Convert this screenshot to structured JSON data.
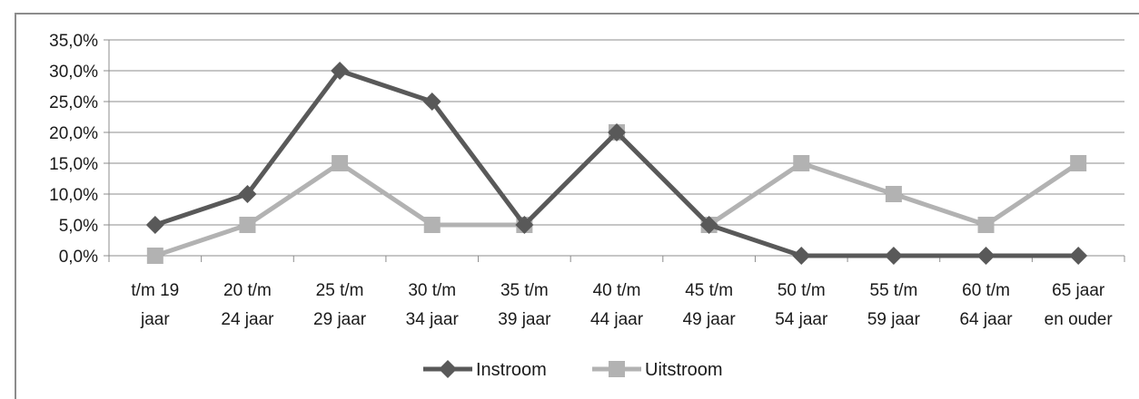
{
  "chart_data": {
    "type": "line",
    "categories": [
      [
        "t/m 19",
        "jaar"
      ],
      [
        "20 t/m",
        "24 jaar"
      ],
      [
        "25 t/m",
        "29 jaar"
      ],
      [
        "30 t/m",
        "34 jaar"
      ],
      [
        "35 t/m",
        "39 jaar"
      ],
      [
        "40 t/m",
        "44 jaar"
      ],
      [
        "45 t/m",
        "49 jaar"
      ],
      [
        "50 t/m",
        "54 jaar"
      ],
      [
        "55 t/m",
        "59 jaar"
      ],
      [
        "60 t/m",
        "64 jaar"
      ],
      [
        "65 jaar",
        "en ouder"
      ]
    ],
    "series": [
      {
        "name": "Instroom",
        "marker": "diamond",
        "color": "#595959",
        "values": [
          5.0,
          10.0,
          30.0,
          25.0,
          5.0,
          20.0,
          5.0,
          0.0,
          0.0,
          0.0,
          0.0
        ]
      },
      {
        "name": "Uitstroom",
        "marker": "square",
        "color": "#b2b2b2",
        "values": [
          0.0,
          5.0,
          15.0,
          5.0,
          5.0,
          20.0,
          5.0,
          15.0,
          10.0,
          5.0,
          15.0
        ]
      }
    ],
    "ylim": [
      0,
      35
    ],
    "yticks": [
      "0,0%",
      "5,0%",
      "10,0%",
      "15,0%",
      "20,0%",
      "25,0%",
      "30,0%",
      "35,0%"
    ],
    "grid": true,
    "legend": "bottom"
  }
}
